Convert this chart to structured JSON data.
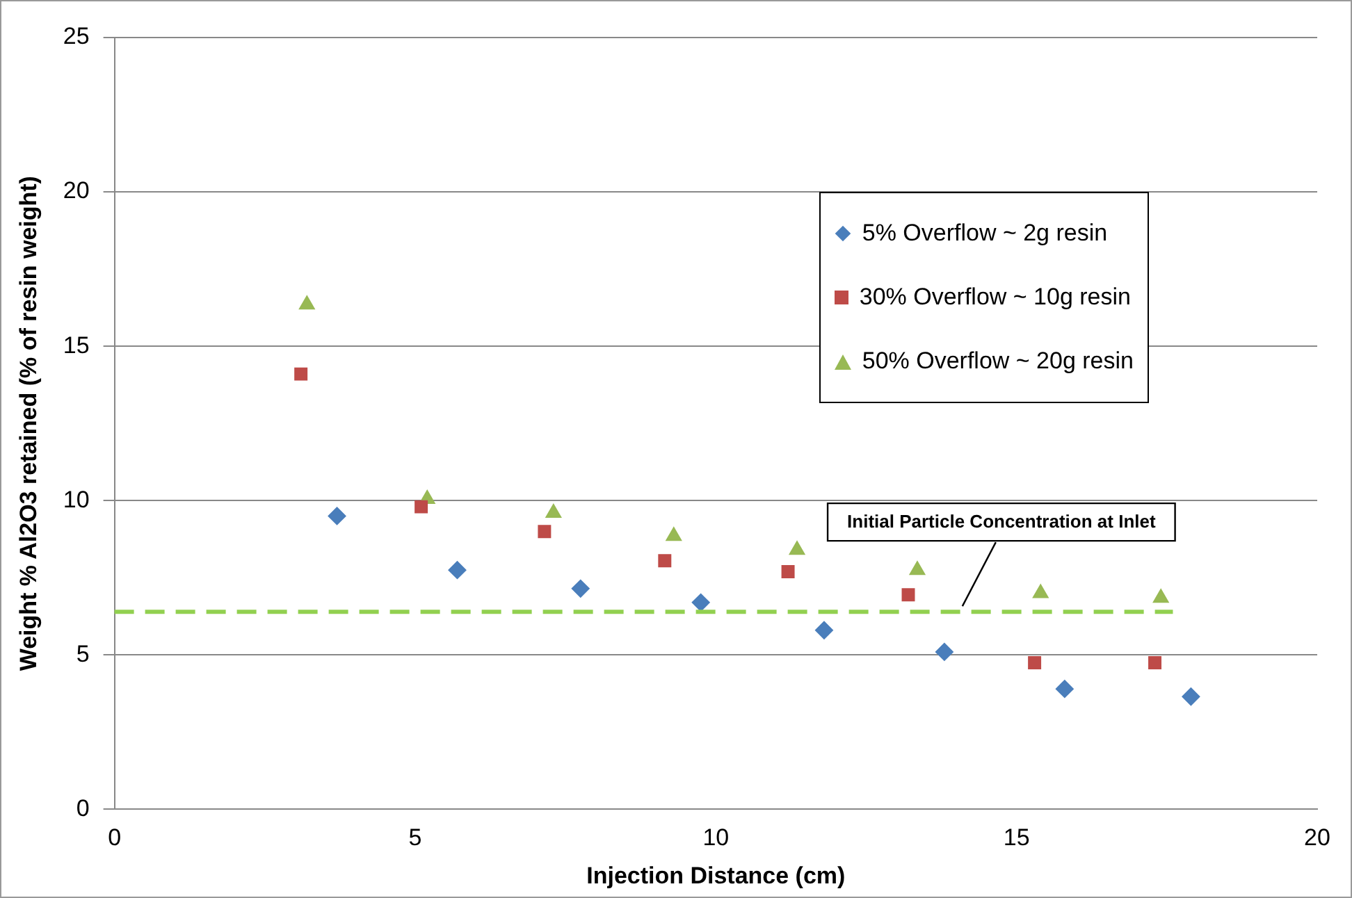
{
  "chart_data": {
    "type": "scatter",
    "xlabel": "Injection Distance (cm)",
    "ylabel": "Weight % Al2O3 retained (% of resin weight)",
    "xlim": [
      0,
      20
    ],
    "xticks": [
      0,
      5,
      10,
      15,
      20
    ],
    "ylim": [
      0,
      25
    ],
    "yticks": [
      0,
      5,
      10,
      15,
      20,
      25
    ],
    "grid": "y",
    "legend": "top right",
    "series": [
      {
        "name": "5% Overflow ~ 2g resin",
        "color": "#4a7ebb",
        "marker": "diamond",
        "x": [
          3.7,
          5.7,
          7.75,
          9.75,
          11.8,
          13.8,
          15.8,
          17.9
        ],
        "values": [
          9.5,
          7.75,
          7.15,
          6.7,
          5.8,
          5.1,
          3.9,
          3.65
        ]
      },
      {
        "name": "30% Overflow ~ 10g resin",
        "color": "#be4b48",
        "marker": "square",
        "x": [
          3.1,
          5.1,
          7.15,
          9.15,
          11.2,
          13.2,
          15.3,
          17.3
        ],
        "values": [
          14.1,
          9.8,
          9.0,
          8.05,
          7.7,
          6.95,
          4.75,
          4.75
        ]
      },
      {
        "name": "50% Overflow ~ 20g resin",
        "color": "#98b954",
        "marker": "triangle",
        "x": [
          3.2,
          5.2,
          7.3,
          9.3,
          11.35,
          13.35,
          15.4,
          17.4
        ],
        "values": [
          16.35,
          10.05,
          9.6,
          8.85,
          8.4,
          7.75,
          7.0,
          6.85
        ]
      }
    ],
    "ref_lines": [
      {
        "axis": "y",
        "value": 6.4,
        "color": "#92d050",
        "line_style": "dashed"
      }
    ],
    "annotations": [
      {
        "text": "Initial Particle Concentration at Inlet",
        "x": 14.1,
        "y": 6.4
      }
    ]
  }
}
